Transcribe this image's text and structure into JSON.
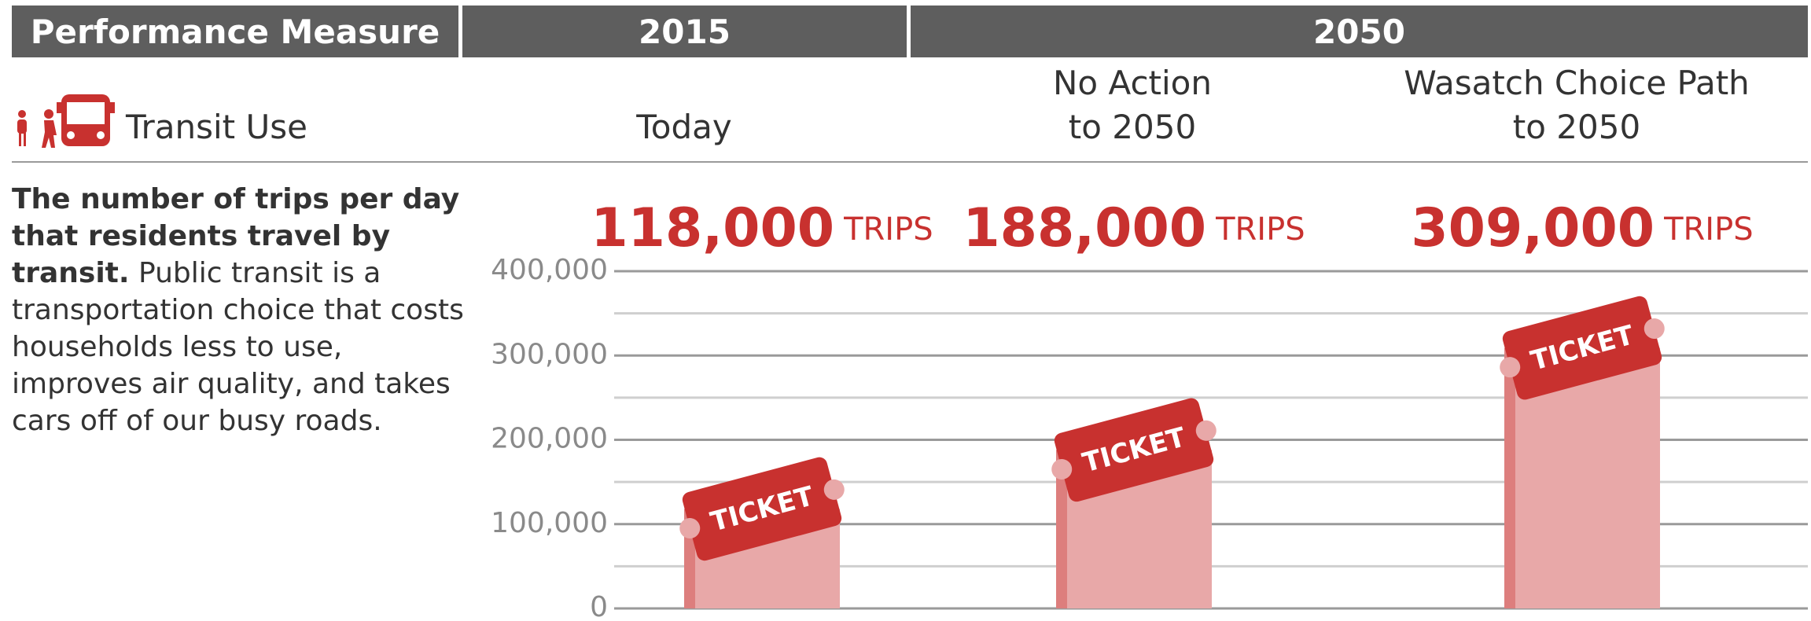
{
  "header": {
    "columns": [
      "Performance Measure",
      "2015",
      "2050"
    ]
  },
  "measure": "Transit Use",
  "description": {
    "bold": "The number of trips per day that residents travel by transit.",
    "text": "Public transit is a transportation choice that costs households less to use, improves air quality, and takes cars off of our busy roads."
  },
  "chart_data": {
    "type": "bar",
    "categories": [
      "Today",
      "No Action\nto 2050",
      "Wasatch Choice Path\nto 2050"
    ],
    "values": [
      118000,
      188000,
      309000
    ],
    "value_labels": [
      "118,000",
      "188,000",
      "309,000"
    ],
    "unit": "TRIPS",
    "bar_label": "TICKET",
    "color": "#e8a8a8",
    "accent_color": "#c8312f",
    "ylim": [
      0,
      400000
    ],
    "yticks": [
      0,
      {
        "value": 100000,
        "label": "100,000"
      },
      {
        "value": 200000,
        "label": "200,000"
      },
      {
        "value": 300000,
        "label": "300,000"
      },
      {
        "value": 400000,
        "label": "400,000"
      }
    ],
    "minor_yticks": [
      50000,
      150000,
      250000,
      350000
    ],
    "grid": true
  }
}
